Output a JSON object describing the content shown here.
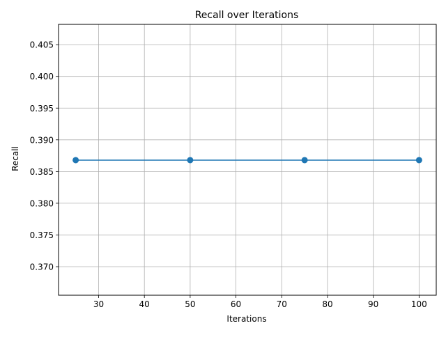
{
  "chart_data": {
    "type": "line",
    "title": "Recall over Iterations",
    "xlabel": "Iterations",
    "ylabel": "Recall",
    "x": [
      25,
      50,
      75,
      100
    ],
    "series": [
      {
        "values": [
          0.3868,
          0.3868,
          0.3868,
          0.3868
        ],
        "color": "#1f77b4",
        "marker": "circle"
      }
    ],
    "xlim": [
      21.25,
      103.75
    ],
    "ylim": [
      0.3655,
      0.4082
    ],
    "xticks": [
      30,
      40,
      50,
      60,
      70,
      80,
      90,
      100
    ],
    "xtick_labels": [
      "30",
      "40",
      "50",
      "60",
      "70",
      "80",
      "90",
      "100"
    ],
    "yticks": [
      0.37,
      0.375,
      0.38,
      0.385,
      0.39,
      0.395,
      0.4,
      0.405
    ],
    "ytick_labels": [
      "0.370",
      "0.375",
      "0.380",
      "0.385",
      "0.390",
      "0.395",
      "0.400",
      "0.405"
    ],
    "grid": true,
    "grid_color": "#b0b0b0"
  }
}
